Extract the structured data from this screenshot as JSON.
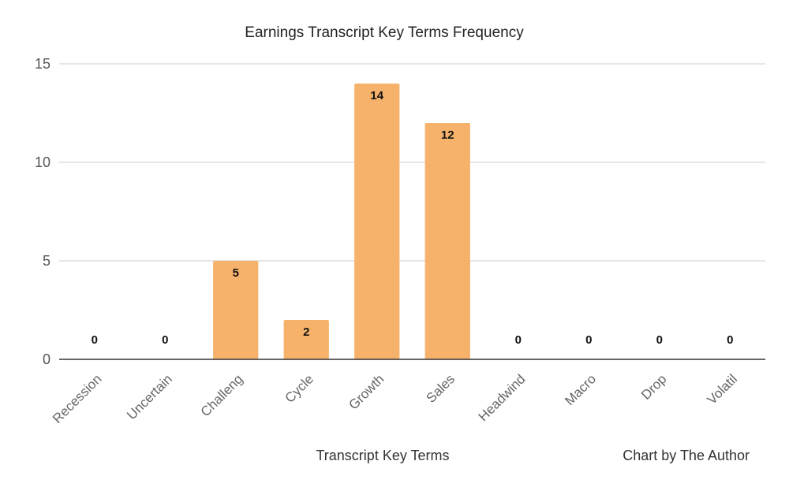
{
  "chart_data": {
    "type": "bar",
    "title": "Earnings Transcript Key Terms Frequency",
    "xlabel": "Transcript Key Terms",
    "ylabel": "",
    "credit": "Chart by The Author",
    "categories": [
      "Recession",
      "Uncertain",
      "Challeng",
      "Cycle",
      "Growth",
      "Sales",
      "Headwind",
      "Macro",
      "Drop",
      "Volatil"
    ],
    "values": [
      0,
      0,
      5,
      2,
      14,
      12,
      0,
      0,
      0,
      0
    ],
    "ylim": [
      0,
      15
    ],
    "yticks": [
      0,
      5,
      10,
      15
    ],
    "data_labels": true,
    "grid": true,
    "legend": "none",
    "colors": {
      "bar": "#f6b26b",
      "grid": "#cccccc",
      "axis": "#333333"
    }
  }
}
